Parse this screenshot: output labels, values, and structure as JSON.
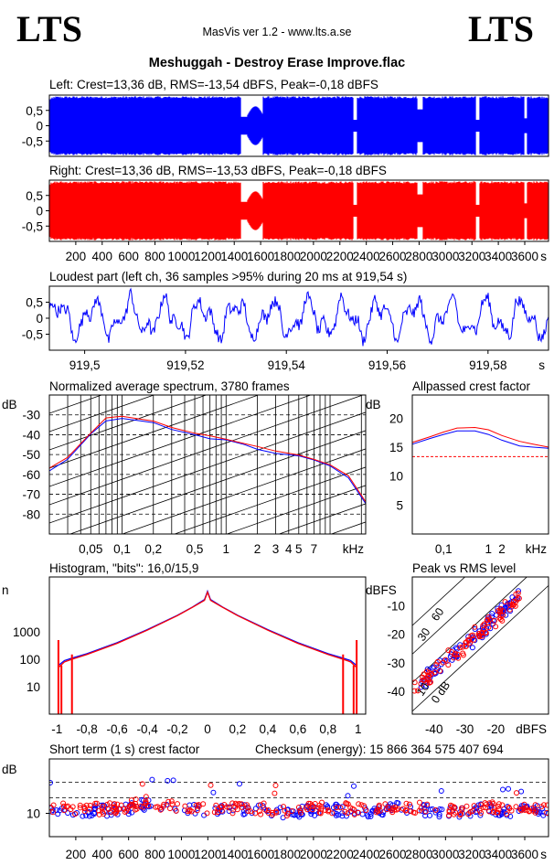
{
  "header": {
    "logo_left": "LTS",
    "logo_right": "LTS",
    "app_title": "MasVis ver 1.2 - www.lts.a.se",
    "file_title": "Meshuggah - Destroy Erase Improve.flac"
  },
  "colors": {
    "left": "#0000ff",
    "right": "#ff0000",
    "grid": "#000000"
  },
  "chart_data": [
    {
      "id": "left-waveform",
      "type": "area",
      "title": "Left: Crest=13,36 dB, RMS=-13,54 dBFS, Peak=-0,18 dBFS",
      "ylim": [
        -1,
        1
      ],
      "y_ticks": [
        "0,5",
        "0",
        "-0,5"
      ],
      "y_tick_values": [
        0.5,
        0,
        -0.5
      ],
      "xlim": [
        0,
        3780
      ],
      "series": [
        {
          "color": "#0000ff"
        }
      ]
    },
    {
      "id": "right-waveform",
      "type": "area",
      "title": "Right: Crest=13,36 dB, RMS=-13,53 dBFS, Peak=-0,18 dBFS",
      "ylim": [
        -1,
        1
      ],
      "y_ticks": [
        "0,5",
        "0",
        "-0,5"
      ],
      "y_tick_values": [
        0.5,
        0,
        -0.5
      ],
      "xlim": [
        0,
        3780
      ],
      "x_ticks": [
        "200",
        "400",
        "600",
        "800",
        "1000",
        "1200",
        "1400",
        "1600",
        "1800",
        "2000",
        "2200",
        "2400",
        "2600",
        "2800",
        "3000",
        "3200",
        "3400",
        "3600"
      ],
      "x_tick_values": [
        200,
        400,
        600,
        800,
        1000,
        1200,
        1400,
        1600,
        1800,
        2000,
        2200,
        2400,
        2600,
        2800,
        3000,
        3200,
        3400,
        3600
      ],
      "xunit": "s",
      "series": [
        {
          "color": "#ff0000"
        }
      ]
    },
    {
      "id": "loudest-part",
      "type": "line",
      "title": "Loudest part (left  ch, 36 samples >95% during 20 ms at 919,54 s)",
      "ylim": [
        -1,
        1
      ],
      "y_ticks": [
        "0,5",
        "0",
        "-0,5"
      ],
      "y_tick_values": [
        0.5,
        0,
        -0.5
      ],
      "xlim": [
        919.493,
        919.592
      ],
      "x_ticks": [
        "919,5",
        "919,52",
        "919,54",
        "919,56",
        "919,58"
      ],
      "x_tick_values": [
        919.5,
        919.52,
        919.54,
        919.56,
        919.58
      ],
      "xunit": "s",
      "series": [
        {
          "color": "#0000ff"
        }
      ]
    },
    {
      "id": "average-spectrum",
      "type": "line",
      "title": "Normalized average spectrum, 3780 frames",
      "ylabel": "dB",
      "xunit": "kHz",
      "y_ticks": [
        "-30",
        "-40",
        "-50",
        "-60",
        "-70",
        "-80"
      ],
      "y_tick_values": [
        -30,
        -40,
        -50,
        -60,
        -70,
        -80
      ],
      "ylim": [
        -90,
        -20
      ],
      "x_ticks": [
        "0,05",
        "0,1",
        "0,2",
        "0,5",
        "1",
        "2",
        "3",
        "4",
        "5",
        "7"
      ],
      "x_tick_values": [
        0.05,
        0.1,
        0.2,
        0.5,
        1,
        2,
        3,
        4,
        5,
        7
      ],
      "xlim": [
        0.02,
        22
      ],
      "log_x": true,
      "series": [
        {
          "color": "#0000ff",
          "x": [
            0.02,
            0.03,
            0.05,
            0.07,
            0.1,
            0.15,
            0.2,
            0.3,
            0.5,
            0.7,
            1,
            1.5,
            2,
            3,
            5,
            7,
            10,
            15,
            22
          ],
          "y": [
            -58,
            -52,
            -40,
            -33,
            -32,
            -33,
            -34,
            -37,
            -40,
            -42,
            -43,
            -45,
            -47,
            -49,
            -51,
            -53,
            -56,
            -62,
            -75
          ]
        },
        {
          "color": "#ff0000",
          "x": [
            0.02,
            0.03,
            0.05,
            0.07,
            0.1,
            0.15,
            0.2,
            0.3,
            0.5,
            0.7,
            1,
            1.5,
            2,
            3,
            5,
            7,
            10,
            15,
            22
          ],
          "y": [
            -57,
            -51,
            -39,
            -32,
            -31,
            -32,
            -33,
            -36,
            -39,
            -41,
            -42,
            -44,
            -46,
            -48,
            -50,
            -52,
            -55,
            -61,
            -74
          ]
        }
      ]
    },
    {
      "id": "allpassed-crest",
      "type": "line",
      "title": "Allpassed crest factor",
      "ylabel": "dB",
      "xunit": "kHz",
      "y_ticks": [
        "20",
        "15",
        "10",
        "5"
      ],
      "y_tick_values": [
        20,
        15,
        10,
        5
      ],
      "ylim": [
        0,
        24
      ],
      "x_ticks": [
        "0,1",
        "1",
        "2"
      ],
      "x_tick_values": [
        0.1,
        1,
        2
      ],
      "xlim": [
        0.02,
        22
      ],
      "log_x": true,
      "reference_level": 13.36,
      "series": [
        {
          "color": "#0000ff",
          "x": [
            0.02,
            0.05,
            0.1,
            0.2,
            0.5,
            1,
            2,
            5,
            10,
            22
          ],
          "y": [
            15.5,
            16.5,
            17.2,
            17.8,
            17.8,
            17.2,
            16.2,
            15.2,
            15.0,
            14.8
          ]
        },
        {
          "color": "#ff0000",
          "x": [
            0.02,
            0.05,
            0.1,
            0.2,
            0.5,
            1,
            2,
            5,
            10,
            22
          ],
          "y": [
            15.8,
            16.8,
            17.6,
            18.3,
            18.4,
            18.0,
            17.0,
            16.0,
            15.5,
            15.0
          ]
        }
      ]
    },
    {
      "id": "histogram",
      "type": "line",
      "title": "Histogram, \"bits\": 16,0/15,9",
      "ylabel": "n",
      "log_y": true,
      "y_ticks": [
        "1000",
        "100",
        "10"
      ],
      "y_tick_values": [
        1000,
        100,
        10
      ],
      "ylim": [
        1,
        100000
      ],
      "x_ticks": [
        "-1",
        "-0,8",
        "-0,6",
        "-0,4",
        "-0,2",
        "0",
        "0,2",
        "0,4",
        "0,6",
        "0,8",
        "1"
      ],
      "x_tick_values": [
        -1,
        -0.8,
        -0.6,
        -0.4,
        -0.2,
        0,
        0.2,
        0.4,
        0.6,
        0.8,
        1
      ],
      "xlim": [
        -1.05,
        1.05
      ],
      "series": [
        {
          "color": "#0000ff",
          "x": [
            -0.99,
            -0.95,
            -0.9,
            -0.8,
            -0.6,
            -0.4,
            -0.2,
            -0.1,
            -0.02,
            0,
            0.02,
            0.1,
            0.2,
            0.4,
            0.6,
            0.8,
            0.9,
            0.95,
            0.99
          ],
          "y": [
            60,
            90,
            110,
            160,
            400,
            1200,
            4000,
            8000,
            15000,
            30000,
            15000,
            8000,
            4000,
            1200,
            400,
            160,
            110,
            90,
            60
          ]
        },
        {
          "color": "#ff0000",
          "x": [
            -0.99,
            -0.95,
            -0.9,
            -0.8,
            -0.6,
            -0.4,
            -0.2,
            -0.1,
            -0.02,
            0,
            0.02,
            0.1,
            0.2,
            0.4,
            0.6,
            0.8,
            0.9,
            0.95,
            0.99
          ],
          "y": [
            50,
            80,
            100,
            150,
            380,
            1150,
            3900,
            7800,
            14000,
            28000,
            14000,
            7800,
            3900,
            1150,
            380,
            150,
            100,
            80,
            50
          ]
        }
      ]
    },
    {
      "id": "peak-vs-rms",
      "type": "scatter",
      "title": "Peak vs RMS level",
      "ylabel": "dBFS",
      "xunit": "dBFS",
      "y_ticks": [
        "-10",
        "-20",
        "-30",
        "-40"
      ],
      "y_tick_values": [
        -10,
        -20,
        -30,
        -40
      ],
      "ylim": [
        -48,
        0
      ],
      "x_ticks": [
        "-40",
        "-30",
        "-20"
      ],
      "x_tick_values": [
        -40,
        -30,
        -20
      ],
      "xlim": [
        -47,
        -3
      ],
      "diagonal_labels": [
        "60",
        "30",
        "10",
        "0 dB"
      ],
      "diagonal_values": [
        60,
        30,
        10,
        0
      ],
      "series": [
        {
          "color": "#0000ff",
          "x": [
            -45,
            -42,
            -40,
            -38,
            -35,
            -33,
            -30,
            -28,
            -26,
            -24,
            -22,
            -20,
            -18,
            -16,
            -14,
            -13
          ],
          "y": [
            -38,
            -35,
            -33,
            -31,
            -28,
            -26,
            -24,
            -22,
            -20,
            -18,
            -16,
            -14,
            -12,
            -10,
            -8,
            -6
          ]
        },
        {
          "color": "#ff0000",
          "x": [
            -46,
            -43,
            -41,
            -39,
            -36,
            -34,
            -31,
            -29,
            -27,
            -25,
            -23,
            -21,
            -19,
            -17,
            -15,
            -13
          ],
          "y": [
            -40,
            -36,
            -34,
            -32,
            -29,
            -27,
            -25,
            -23,
            -21,
            -19,
            -17,
            -15,
            -13,
            -11,
            -9,
            -7
          ]
        }
      ]
    },
    {
      "id": "short-term-crest",
      "type": "scatter",
      "title": "Short term (1 s) crest factor",
      "checksum": "Checksum (energy):  15 866 364 575 407 694",
      "ylabel": "dB",
      "y_ticks": [
        "10"
      ],
      "y_tick_values": [
        10
      ],
      "ylim": [
        4,
        24
      ],
      "xlim": [
        0,
        3780
      ],
      "x_ticks": [
        "200",
        "400",
        "600",
        "800",
        "1000",
        "1200",
        "1400",
        "1600",
        "1800",
        "2000",
        "2200",
        "2400",
        "2600",
        "2800",
        "3000",
        "3200",
        "3400",
        "3600"
      ],
      "x_tick_values": [
        200,
        400,
        600,
        800,
        1000,
        1200,
        1400,
        1600,
        1800,
        2000,
        2200,
        2400,
        2600,
        2800,
        3000,
        3200,
        3400,
        3600
      ],
      "xunit": "s",
      "series": [
        {
          "color": "#0000ff",
          "x": [
            50,
            300,
            600,
            700,
            900,
            1200,
            1500,
            1800,
            2100,
            2400,
            2700,
            3000,
            3300,
            3600,
            3750
          ],
          "y": [
            11,
            10.5,
            11,
            12,
            11.5,
            10.5,
            11,
            10,
            11,
            10.5,
            11.5,
            10,
            11,
            10.5,
            11
          ]
        },
        {
          "color": "#ff0000",
          "x": [
            40,
            280,
            580,
            720,
            880,
            1210,
            1520,
            1780,
            2090,
            2420,
            2680,
            3020,
            3280,
            3620,
            3740
          ],
          "y": [
            11.5,
            11,
            11.5,
            13,
            12,
            11,
            11.5,
            10.5,
            11.5,
            11,
            12,
            10.5,
            11.5,
            11,
            11.5
          ]
        }
      ]
    }
  ]
}
